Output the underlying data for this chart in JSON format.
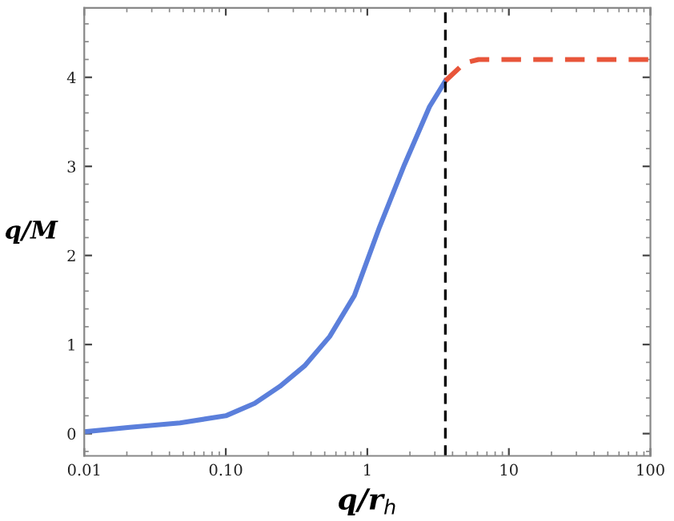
{
  "chart_data": {
    "type": "line",
    "xlabel": "q/r$_{h}$",
    "ylabel": "q/M",
    "log": "x",
    "xlim": [
      0.01,
      100
    ],
    "xticks": [
      {
        "value": 0.01,
        "label": "0.01"
      },
      {
        "value": 0.1,
        "label": "0.10"
      },
      1,
      10,
      100
    ],
    "ylim": [
      -0.25,
      4.78
    ],
    "yticks": [
      0,
      1,
      2,
      3,
      4
    ],
    "grid": false,
    "legend": false,
    "marker": "none",
    "series": [
      {
        "color": "#5b7fdb",
        "line_style": "solid",
        "x": [
          0.01,
          0.021,
          0.0475,
          0.1,
          0.16,
          0.241,
          0.36,
          0.542,
          0.81,
          1.22,
          1.83,
          2.75,
          3.56
        ],
        "values": [
          0.02,
          0.07,
          0.12,
          0.2,
          0.34,
          0.53,
          0.76,
          1.09,
          1.55,
          2.32,
          3.02,
          3.67,
          3.96
        ]
      },
      {
        "color": "#e8553a",
        "line_style": "dashed",
        "x": [
          3.56,
          4.85,
          6.1,
          13.9,
          100
        ],
        "values": [
          3.96,
          4.16,
          4.2,
          4.2,
          4.2
        ]
      }
    ],
    "ref_lines": [
      {
        "axis": "x",
        "value": 3.56,
        "color": "#000000",
        "line_style": "dashed"
      }
    ]
  }
}
